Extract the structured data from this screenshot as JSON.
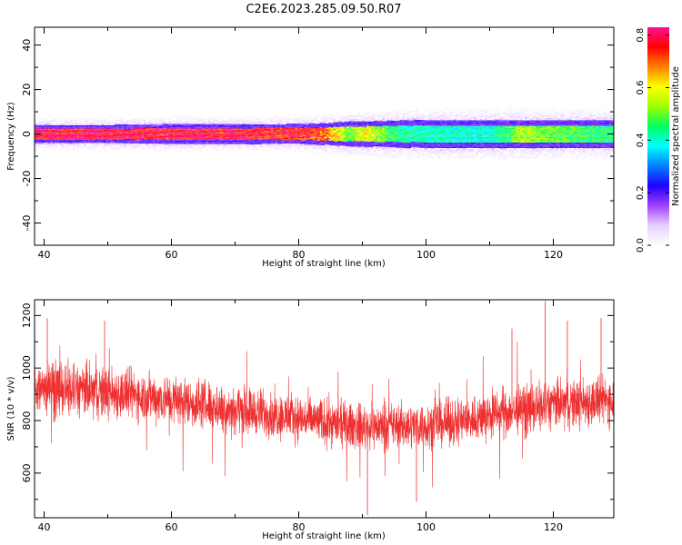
{
  "figure": {
    "title": "C2E6.2023.285.09.50.R07"
  },
  "chart_data": [
    {
      "type": "heatmap",
      "xlabel": "Height of straight line (km)",
      "ylabel": "Frequency (Hz)",
      "xlim": [
        38.5,
        129.5
      ],
      "ylim": [
        -50,
        48
      ],
      "x_ticks": [
        40,
        60,
        80,
        100,
        120
      ],
      "x_tick_labels": [
        "40",
        "60",
        "80",
        "100",
        "120"
      ],
      "y_ticks": [
        40,
        20,
        0,
        -20,
        -40
      ],
      "y_tick_labels": [
        "40",
        "20",
        "0",
        "-20",
        "-40"
      ],
      "band": [
        {
          "x": 40,
          "peak": 0.82,
          "width_hz": 5.5
        },
        {
          "x": 50,
          "peak": 0.82,
          "width_hz": 5.5
        },
        {
          "x": 60,
          "peak": 0.8,
          "width_hz": 5.8
        },
        {
          "x": 70,
          "peak": 0.8,
          "width_hz": 5.8
        },
        {
          "x": 80,
          "peak": 0.78,
          "width_hz": 6.0
        },
        {
          "x": 84,
          "peak": 0.72,
          "width_hz": 6.5
        },
        {
          "x": 88,
          "peak": 0.5,
          "width_hz": 7.5
        },
        {
          "x": 90,
          "peak": 0.62,
          "width_hz": 7.5
        },
        {
          "x": 95,
          "peak": 0.45,
          "width_hz": 8.0
        },
        {
          "x": 100,
          "peak": 0.42,
          "width_hz": 8.5
        },
        {
          "x": 110,
          "peak": 0.4,
          "width_hz": 8.5
        },
        {
          "x": 115,
          "peak": 0.55,
          "width_hz": 8.5
        },
        {
          "x": 120,
          "peak": 0.5,
          "width_hz": 8.5
        },
        {
          "x": 129,
          "peak": 0.45,
          "width_hz": 8.5
        }
      ],
      "colorbar": {
        "label": "Normalized spectral amplitude",
        "range": [
          0,
          0.83
        ],
        "ticks": [
          0.0,
          0.2,
          0.4,
          0.6,
          0.8
        ],
        "tick_labels": [
          "0.0",
          "0.2",
          "0.4",
          "0.6",
          "0.8"
        ],
        "colormap": [
          "#ffffff",
          "#e8d0ff",
          "#a040ff",
          "#2000ff",
          "#0080ff",
          "#00ffff",
          "#00ff60",
          "#a0ff00",
          "#ffff00",
          "#ff8000",
          "#ff0000",
          "#ff1090"
        ]
      }
    },
    {
      "type": "line",
      "xlabel": "Height of straight line (km)",
      "ylabel": "SNR (10 * v/v)",
      "xlim": [
        38.5,
        129.5
      ],
      "ylim": [
        430,
        1260
      ],
      "x_ticks": [
        40,
        60,
        80,
        100,
        120
      ],
      "x_tick_labels": [
        "40",
        "60",
        "80",
        "100",
        "120"
      ],
      "y_ticks": [
        1200,
        1000,
        800,
        600
      ],
      "y_tick_labels": [
        "1200",
        "1000",
        "800",
        "600"
      ],
      "line_color": "#ee3030",
      "envelope": [
        {
          "x": 38.5,
          "low": 780,
          "mean": 930,
          "high": 1080
        },
        {
          "x": 45,
          "low": 770,
          "mean": 910,
          "high": 1080
        },
        {
          "x": 55,
          "low": 760,
          "mean": 895,
          "high": 1040
        },
        {
          "x": 65,
          "low": 730,
          "mean": 860,
          "high": 1000
        },
        {
          "x": 75,
          "low": 700,
          "mean": 825,
          "high": 960
        },
        {
          "x": 85,
          "low": 670,
          "mean": 790,
          "high": 920
        },
        {
          "x": 90,
          "low": 650,
          "mean": 775,
          "high": 900
        },
        {
          "x": 95,
          "low": 660,
          "mean": 780,
          "high": 905
        },
        {
          "x": 100,
          "low": 660,
          "mean": 780,
          "high": 910
        },
        {
          "x": 105,
          "low": 670,
          "mean": 795,
          "high": 925
        },
        {
          "x": 110,
          "low": 690,
          "mean": 820,
          "high": 950
        },
        {
          "x": 115,
          "low": 710,
          "mean": 840,
          "high": 980
        },
        {
          "x": 120,
          "low": 720,
          "mean": 860,
          "high": 1000
        },
        {
          "x": 125,
          "low": 730,
          "mean": 870,
          "high": 1010
        },
        {
          "x": 129.5,
          "low": 740,
          "mean": 880,
          "high": 1020
        }
      ],
      "extremes": [
        {
          "x": 40.5,
          "y": 1190
        },
        {
          "x": 49.5,
          "y": 1180
        },
        {
          "x": 90.8,
          "y": 440
        },
        {
          "x": 98.5,
          "y": 490
        },
        {
          "x": 113.5,
          "y": 1150
        },
        {
          "x": 118.7,
          "y": 1255
        },
        {
          "x": 122.2,
          "y": 1180
        },
        {
          "x": 127.5,
          "y": 1190
        }
      ]
    }
  ]
}
